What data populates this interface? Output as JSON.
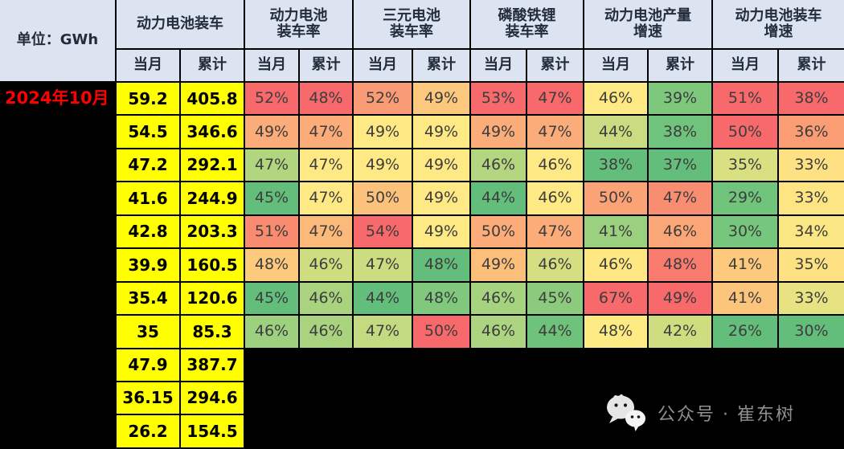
{
  "chart_data": {
    "type": "table",
    "unit_label": "单位：GWh",
    "period_label": "2024年10月",
    "column_groups": [
      {
        "label": "动力电池装车",
        "sub": [
          "当月",
          "累计"
        ]
      },
      {
        "label": "动力电池\n装车率",
        "sub": [
          "当月",
          "累计"
        ]
      },
      {
        "label": "三元电池\n装车率",
        "sub": [
          "当月",
          "累计"
        ]
      },
      {
        "label": "磷酸铁锂\n装车率",
        "sub": [
          "当月",
          "累计"
        ]
      },
      {
        "label": "动力电池产量\n增速",
        "sub": [
          "当月",
          "累计"
        ]
      },
      {
        "label": "动力电池装车\n增速",
        "sub": [
          "当月",
          "累计"
        ]
      }
    ],
    "rows": [
      {
        "label": "2024年10月",
        "gwh": [
          "59.2",
          "405.8"
        ],
        "pct": [
          "52%",
          "48%",
          "52%",
          "49%",
          "53%",
          "47%",
          "46%",
          "39%",
          "51%",
          "38%"
        ],
        "pct_colors": [
          "#F8696B",
          "#F8696B",
          "#F99B74",
          "#FCC87D",
          "#F8696B",
          "#F8696B",
          "#FFE984",
          "#7EC87D",
          "#F8696B",
          "#F8696B"
        ]
      },
      {
        "label": "",
        "gwh": [
          "54.5",
          "346.6"
        ],
        "pct": [
          "49%",
          "47%",
          "49%",
          "49%",
          "49%",
          "47%",
          "44%",
          "38%",
          "50%",
          "36%"
        ],
        "pct_colors": [
          "#FBAC78",
          "#FBAC78",
          "#FFE984",
          "#FFE984",
          "#FBAD79",
          "#FBAD79",
          "#C9DC81",
          "#70C37C",
          "#F8696B",
          "#FA9D74"
        ]
      },
      {
        "label": "",
        "gwh": [
          "47.2",
          "292.1"
        ],
        "pct": [
          "47%",
          "47%",
          "49%",
          "49%",
          "46%",
          "46%",
          "38%",
          "37%",
          "35%",
          "33%"
        ],
        "pct_colors": [
          "#B2D57F",
          "#FFE984",
          "#FFE984",
          "#FFE984",
          "#B5D680",
          "#FFE984",
          "#63BE7B",
          "#63BE7B",
          "#D9E082",
          "#FEE183"
        ]
      },
      {
        "label": "",
        "gwh": [
          "41.6",
          "244.9"
        ],
        "pct": [
          "45%",
          "47%",
          "50%",
          "49%",
          "44%",
          "46%",
          "50%",
          "47%",
          "29%",
          "33%"
        ],
        "pct_colors": [
          "#63BE7B",
          "#FFE984",
          "#FCC17B",
          "#FFE984",
          "#63BE7B",
          "#FFE984",
          "#FBA376",
          "#F98D71",
          "#70C47C",
          "#FEE583"
        ]
      },
      {
        "label": "",
        "gwh": [
          "42.8",
          "203.3"
        ],
        "pct": [
          "51%",
          "47%",
          "54%",
          "49%",
          "50%",
          "47%",
          "41%",
          "46%",
          "30%",
          "34%"
        ],
        "pct_colors": [
          "#F88B70",
          "#FBB97A",
          "#F8696B",
          "#FFE984",
          "#FBAC78",
          "#FBAC78",
          "#9AD07E",
          "#FBA677",
          "#77C67D",
          "#FBE684"
        ]
      },
      {
        "label": "",
        "gwh": [
          "39.9",
          "160.5"
        ],
        "pct": [
          "48%",
          "46%",
          "47%",
          "48%",
          "49%",
          "46%",
          "46%",
          "48%",
          "41%",
          "35%"
        ],
        "pct_colors": [
          "#FCC97D",
          "#CFDD81",
          "#CCDC81",
          "#63BE7B",
          "#FCBF7B",
          "#D6DE82",
          "#FFE883",
          "#F87B6E",
          "#FDC97D",
          "#FEE182"
        ]
      },
      {
        "label": "",
        "gwh": [
          "35.4",
          "120.6"
        ],
        "pct": [
          "45%",
          "46%",
          "44%",
          "48%",
          "46%",
          "45%",
          "67%",
          "49%",
          "41%",
          "33%"
        ],
        "pct_colors": [
          "#63BE7B",
          "#A9D37F",
          "#63BE7B",
          "#7FC87D",
          "#A5D37F",
          "#8CCB7E",
          "#F8696B",
          "#F8696B",
          "#FCC57C",
          "#E8E382"
        ]
      },
      {
        "label": "",
        "gwh": [
          "35",
          "85.3"
        ],
        "pct": [
          "46%",
          "46%",
          "47%",
          "50%",
          "46%",
          "44%",
          "48%",
          "42%",
          "26%",
          "30%"
        ],
        "pct_colors": [
          "#9ED17F",
          "#A9D37F",
          "#C4DA80",
          "#F8696B",
          "#ADD480",
          "#6FC27B",
          "#FFEB84",
          "#CFDD81",
          "#63BE7B",
          "#63BE7B"
        ]
      },
      {
        "label": "",
        "gwh": [
          "47.9",
          "387.7"
        ],
        "pct": [],
        "pct_colors": []
      },
      {
        "label": "",
        "gwh": [
          "36.15",
          "294.6"
        ],
        "pct": [],
        "pct_colors": []
      },
      {
        "label": "",
        "gwh": [
          "26.2",
          "154.5"
        ],
        "pct": [],
        "pct_colors": []
      }
    ]
  },
  "watermark": {
    "icon": "wechat-icon",
    "text": "公众号 · 崔东树"
  },
  "colors": {
    "header_bg": "#DCE3F1",
    "value_cell_bg": "#FFFF00",
    "period_text": "#FF0000",
    "background": "#000000",
    "heat_scale_max": "#F8696B",
    "heat_scale_mid": "#FFEB84",
    "heat_scale_min": "#63BE7B",
    "watermark_text": "#8F8F8F"
  }
}
